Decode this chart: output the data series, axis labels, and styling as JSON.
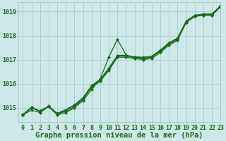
{
  "background_color": "#cce8e8",
  "grid_color": "#aacccc",
  "line_color": "#1a6b1a",
  "marker_color": "#1a6b1a",
  "xlabel": "Graphe pression niveau de la mer (hPa)",
  "xlim": [
    -0.5,
    23
  ],
  "ylim": [
    1014.4,
    1019.4
  ],
  "yticks": [
    1015,
    1016,
    1017,
    1018,
    1019
  ],
  "xticks": [
    0,
    1,
    2,
    3,
    4,
    5,
    6,
    7,
    8,
    9,
    10,
    11,
    12,
    13,
    14,
    15,
    16,
    17,
    18,
    19,
    20,
    21,
    22,
    23
  ],
  "series": [
    [
      1014.7,
      1014.9,
      1014.8,
      1015.05,
      1014.7,
      1014.8,
      1015.0,
      1015.3,
      1015.75,
      1016.2,
      1017.1,
      1017.85,
      1017.2,
      1017.05,
      1017.0,
      1017.05,
      1017.3,
      1017.6,
      1017.8,
      1018.55,
      1018.8,
      1018.85,
      1018.85,
      1019.2
    ],
    [
      1014.7,
      1015.0,
      1014.85,
      1015.05,
      1014.75,
      1014.85,
      1015.05,
      1015.35,
      1015.85,
      1016.1,
      1016.55,
      1017.1,
      1017.1,
      1017.05,
      1017.05,
      1017.1,
      1017.35,
      1017.65,
      1017.85,
      1018.55,
      1018.8,
      1018.85,
      1018.85,
      1019.2
    ],
    [
      1014.7,
      1015.0,
      1014.85,
      1015.05,
      1014.75,
      1014.9,
      1015.1,
      1015.4,
      1015.9,
      1016.15,
      1016.6,
      1017.15,
      1017.15,
      1017.1,
      1017.08,
      1017.12,
      1017.38,
      1017.68,
      1017.88,
      1018.58,
      1018.83,
      1018.88,
      1018.88,
      1019.22
    ],
    [
      1014.72,
      1015.02,
      1014.87,
      1015.07,
      1014.77,
      1014.92,
      1015.12,
      1015.42,
      1015.92,
      1016.18,
      1016.65,
      1017.18,
      1017.18,
      1017.12,
      1017.1,
      1017.14,
      1017.4,
      1017.7,
      1017.9,
      1018.6,
      1018.85,
      1018.9,
      1018.9,
      1019.24
    ]
  ],
  "title_fontsize": 7.5,
  "tick_fontsize": 6,
  "line_width": 0.9,
  "marker_size": 2.2
}
